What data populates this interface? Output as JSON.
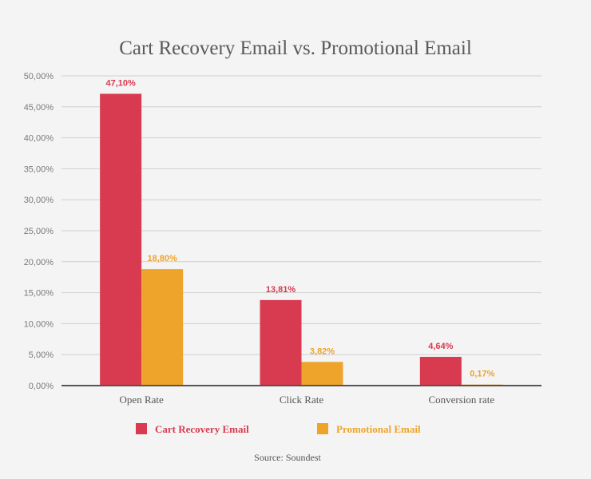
{
  "chart_data": {
    "type": "bar",
    "title": "Cart Recovery Email vs. Promotional Email",
    "source": "Source: Soundest",
    "categories": [
      "Open Rate",
      "Click Rate",
      "Conversion rate"
    ],
    "series": [
      {
        "name": "Cart Recovery Email",
        "color": "#d83a4f",
        "values": [
          47.1,
          13.81,
          4.64
        ],
        "labels": [
          "47,10%",
          "13,81%",
          "4,64%"
        ]
      },
      {
        "name": "Promotional Email",
        "color": "#eea42b",
        "values": [
          18.8,
          3.82,
          0.17
        ],
        "labels": [
          "18,80%",
          "3,82%",
          "0,17%"
        ]
      }
    ],
    "ylim": [
      0,
      50
    ],
    "yticks": [
      0,
      5,
      10,
      15,
      20,
      25,
      30,
      35,
      40,
      45,
      50
    ],
    "ytick_labels": [
      "0,00%",
      "5,00%",
      "10,00%",
      "15,00%",
      "20,00%",
      "25,00%",
      "30,00%",
      "35,00%",
      "40,00%",
      "45,00%",
      "50,00%"
    ],
    "xlabel": "",
    "ylabel": "",
    "grid": true,
    "legend_position": "bottom"
  }
}
